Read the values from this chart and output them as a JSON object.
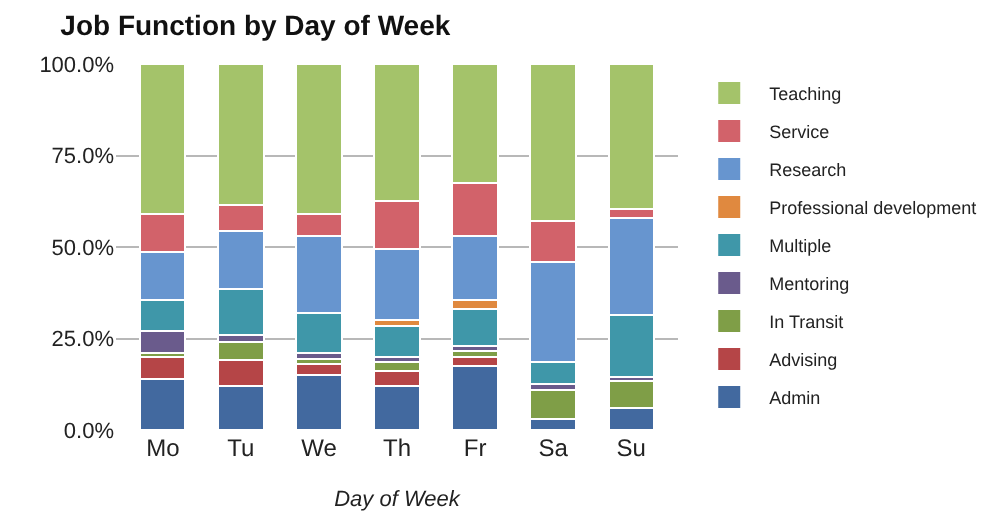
{
  "chart_data": {
    "type": "bar",
    "stacked": true,
    "title": "Job Function by Day of Week",
    "xlabel": "Day of Week",
    "categories": [
      "Mo",
      "Tu",
      "We",
      "Th",
      "Fr",
      "Sa",
      "Su"
    ],
    "series": [
      {
        "name": "Admin",
        "color": "#42699f",
        "values": [
          14,
          12,
          15,
          12,
          17.5,
          3,
          6
        ]
      },
      {
        "name": "Advising",
        "color": "#b54547",
        "values": [
          6,
          7,
          3,
          4,
          2.5,
          0,
          0
        ]
      },
      {
        "name": "In Transit",
        "color": "#7f9e47",
        "values": [
          1,
          5,
          1.5,
          2.5,
          1.5,
          8,
          7.5
        ]
      },
      {
        "name": "Mentoring",
        "color": "#6a5b8c",
        "values": [
          6,
          2,
          1.5,
          1.5,
          1.5,
          1.5,
          1
        ]
      },
      {
        "name": "Multiple",
        "color": "#3f97a9",
        "values": [
          8.5,
          12.5,
          11,
          8.5,
          10,
          6,
          17
        ]
      },
      {
        "name": "Professional development",
        "color": "#e0893f",
        "values": [
          0,
          0,
          0,
          1.5,
          2.5,
          0,
          0
        ]
      },
      {
        "name": "Research",
        "color": "#6795cf",
        "values": [
          13,
          16,
          21,
          19.5,
          17.5,
          27.5,
          26.5
        ]
      },
      {
        "name": "Service",
        "color": "#d2626a",
        "values": [
          10.5,
          7,
          6,
          13,
          14.5,
          11,
          2.5
        ]
      },
      {
        "name": "Teaching",
        "color": "#a4c36a",
        "values": [
          41,
          38.5,
          41,
          37.5,
          32.5,
          43,
          39.5
        ]
      }
    ],
    "ylim": [
      0,
      100
    ],
    "yticks": [
      {
        "value": 0,
        "label": "0.0%"
      },
      {
        "value": 25,
        "label": "25.0%"
      },
      {
        "value": 50,
        "label": "50.0%"
      },
      {
        "value": 75,
        "label": "75.0%"
      },
      {
        "value": 100,
        "label": "100.0%"
      }
    ],
    "grid": "y",
    "legend": "right"
  }
}
